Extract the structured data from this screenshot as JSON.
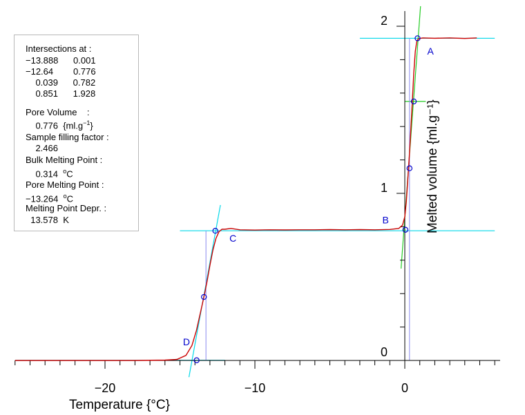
{
  "chart_data": {
    "type": "line",
    "xlabel": "Temperature",
    "xunit": "{°C}",
    "ylabel": "Melted  volume",
    "yunit": "{ml.g⁻¹}",
    "xlim": [
      -26,
      6
    ],
    "ylim": [
      0,
      2.1
    ],
    "x_ticks": [
      -20,
      -10,
      0
    ],
    "y_ticks": [
      0,
      1,
      2
    ],
    "grid": false,
    "colors": {
      "curve": "#cc0000",
      "tangent_cyan": "#00d8e8",
      "tangent_green": "#22cc22",
      "drop_line": "#8a8aee",
      "marker": "#0000cc",
      "label": "#0000cc"
    },
    "series": [
      {
        "values": [
          [
            -26,
            0.0
          ],
          [
            -24,
            0.0
          ],
          [
            -22,
            0.0
          ],
          [
            -20,
            0.0
          ],
          [
            -18,
            0.0
          ],
          [
            -16,
            0.002
          ],
          [
            -15.2,
            0.006
          ],
          [
            -14.6,
            0.03
          ],
          [
            -14.2,
            0.09
          ],
          [
            -13.9,
            0.18
          ],
          [
            -13.6,
            0.3
          ],
          [
            -13.4,
            0.38
          ],
          [
            -13.2,
            0.47
          ],
          [
            -13.0,
            0.57
          ],
          [
            -12.8,
            0.66
          ],
          [
            -12.6,
            0.73
          ],
          [
            -12.4,
            0.77
          ],
          [
            -12.2,
            0.785
          ],
          [
            -12.0,
            0.785
          ],
          [
            -11.6,
            0.79
          ],
          [
            -11.0,
            0.782
          ],
          [
            -10.0,
            0.78
          ],
          [
            -9.0,
            0.782
          ],
          [
            -8.0,
            0.781
          ],
          [
            -7.0,
            0.782
          ],
          [
            -6.0,
            0.782
          ],
          [
            -5.0,
            0.783
          ],
          [
            -4.0,
            0.782
          ],
          [
            -3.0,
            0.783
          ],
          [
            -2.0,
            0.782
          ],
          [
            -1.0,
            0.784
          ],
          [
            -0.4,
            0.79
          ],
          [
            -0.15,
            0.81
          ],
          [
            0.0,
            0.86
          ],
          [
            0.1,
            0.95
          ],
          [
            0.2,
            1.08
          ],
          [
            0.3,
            1.22
          ],
          [
            0.4,
            1.38
          ],
          [
            0.5,
            1.55
          ],
          [
            0.6,
            1.72
          ],
          [
            0.7,
            1.85
          ],
          [
            0.8,
            1.91
          ],
          [
            0.9,
            1.925
          ],
          [
            1.2,
            1.93
          ],
          [
            2.0,
            1.928
          ],
          [
            3.0,
            1.93
          ],
          [
            4.0,
            1.927
          ],
          [
            4.8,
            1.93
          ]
        ]
      }
    ],
    "tangents": [
      {
        "color": "cyan",
        "points": [
          [
            -26,
            0.001
          ],
          [
            -12.0,
            0.001
          ]
        ]
      },
      {
        "color": "cyan",
        "points": [
          [
            -15.0,
            0.776
          ],
          [
            6.0,
            0.776
          ]
        ]
      },
      {
        "color": "cyan",
        "points": [
          [
            -3.0,
            1.928
          ],
          [
            6.0,
            1.928
          ]
        ]
      },
      {
        "color": "cyan",
        "points": [
          [
            -14.4,
            -0.1
          ],
          [
            -12.3,
            0.93
          ]
        ]
      },
      {
        "color": "green",
        "points": [
          [
            -0.25,
            0.55
          ],
          [
            1.05,
            2.12
          ]
        ]
      },
      {
        "color": "green",
        "points": [
          [
            0.0,
            1.55
          ],
          [
            1.4,
            1.55
          ]
        ]
      }
    ],
    "drop_lines": [
      {
        "x": -13.264,
        "y": [
          0,
          0.776
        ]
      },
      {
        "x": 0.314,
        "y": [
          0,
          1.928
        ]
      }
    ],
    "markers": [
      [
        -13.888,
        0.001
      ],
      [
        -12.64,
        0.776
      ],
      [
        0.039,
        0.782
      ],
      [
        0.851,
        1.928
      ],
      [
        -13.4,
        0.38
      ],
      [
        0.314,
        1.15
      ],
      [
        0.6,
        1.55
      ]
    ],
    "point_labels": [
      {
        "text": "A",
        "x": 1.5,
        "y": 1.83
      },
      {
        "text": "B",
        "x": -1.5,
        "y": 0.82
      },
      {
        "text": "C",
        "x": -11.7,
        "y": 0.71
      },
      {
        "text": "D",
        "x": -14.8,
        "y": 0.09
      }
    ]
  },
  "annotation": {
    "lines": [
      "Intersections at :",
      "−13.888      0.001",
      "−12.64        0.776",
      "    0.039      0.782",
      "    0.851      1.928",
      "",
      "Pore Volume    :",
      "    0.776  {ml.g",
      "Sample filling factor :",
      "    2.466",
      "Bulk Melting Point :",
      "    0.314  ",
      "Pore Melting Point :",
      "−13.264  ",
      "Melting Point Depr. :",
      "  13.578  K"
    ],
    "sup_minus1": "−1",
    "close_brace": "}",
    "sup_o": "o",
    "unit_c": "C"
  }
}
